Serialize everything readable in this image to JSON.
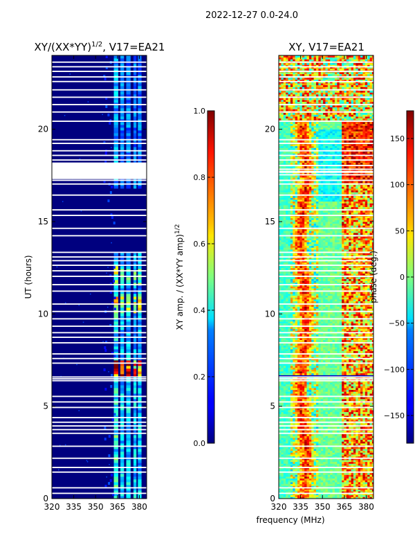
{
  "suptitle": "2022-12-27 0.0-24.0",
  "colors": {
    "background": "#00007f",
    "gap": "#ffffff",
    "axis": "#000000"
  },
  "chart_data": [
    {
      "type": "heatmap",
      "title_main": "XY/(XX*YY)",
      "title_exp": "1/2",
      "title_suffix": ", V17=EA21",
      "xlabel": "",
      "ylabel": "UT (hours)",
      "xlim": [
        320,
        385
      ],
      "ylim": [
        0,
        24
      ],
      "xticks": [
        320,
        335,
        350,
        365,
        380
      ],
      "yticks": [
        0,
        5,
        10,
        15,
        20
      ],
      "colorbar": {
        "label_main": "XY amp. / (XX*YY amp)",
        "label_exp": "1/2",
        "range": [
          0.0,
          1.0
        ],
        "ticks": [
          "0.0",
          "0.2",
          "0.4",
          "0.6",
          "0.8",
          "1.0"
        ],
        "tick_values": [
          0.0,
          0.2,
          0.4,
          0.6,
          0.8,
          1.0
        ]
      },
      "gaps_ut": [
        0.25,
        0.55,
        1.4,
        1.65,
        2.15,
        2.8,
        3.5,
        3.7,
        3.9,
        4.1,
        4.35,
        4.9,
        5.2,
        5.5,
        6.35,
        6.45,
        6.55,
        7.3,
        7.55,
        7.8,
        8.4,
        8.7,
        8.95,
        9.3,
        9.7,
        10.1,
        10.5,
        11.2,
        11.55,
        12.0,
        12.3,
        12.6,
        12.85,
        13.05,
        13.3,
        14.2,
        14.6,
        15.3,
        15.6,
        16.4,
        17.0,
        17.2,
        17.5,
        17.8,
        18.0,
        18.3,
        18.55,
        18.8,
        19.2,
        19.4,
        20.4,
        20.9,
        21.3,
        21.7,
        22.1,
        22.55,
        22.8,
        23.1,
        23.35,
        23.6
      ]
    },
    {
      "type": "heatmap",
      "title_main": "XY, V17=EA21",
      "xlabel": "frequency (MHz)",
      "ylabel": "",
      "xlim": [
        320,
        385
      ],
      "ylim": [
        0,
        24
      ],
      "xticks": [
        320,
        335,
        350,
        365,
        380
      ],
      "yticks": [
        0,
        5,
        10,
        15,
        20
      ],
      "colorbar": {
        "label": "phase (deg.)",
        "range": [
          -180,
          180
        ],
        "ticks": [
          "−150",
          "−100",
          "−50",
          "0",
          "50",
          "100",
          "150"
        ],
        "tick_values": [
          -150,
          -100,
          -50,
          0,
          50,
          100,
          150
        ]
      },
      "gaps_ut": [
        0.25,
        0.55,
        1.4,
        1.65,
        2.15,
        2.8,
        3.5,
        3.7,
        3.9,
        4.1,
        4.35,
        4.9,
        5.2,
        5.5,
        6.35,
        6.45,
        6.55,
        7.3,
        7.55,
        7.8,
        8.4,
        8.7,
        8.95,
        9.3,
        9.7,
        10.1,
        10.5,
        11.2,
        11.55,
        12.0,
        12.3,
        12.6,
        12.85,
        13.05,
        13.3,
        14.2,
        14.6,
        15.3,
        15.6,
        16.4,
        17.0,
        17.2,
        17.5,
        17.8,
        18.0,
        18.3,
        18.55,
        18.8,
        19.2,
        19.4,
        20.4,
        20.9,
        21.3,
        21.7,
        22.1,
        22.55,
        22.8,
        23.1,
        23.35,
        23.6
      ]
    }
  ]
}
